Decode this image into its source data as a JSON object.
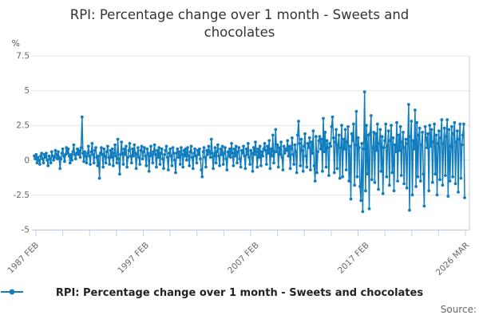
{
  "title": {
    "full": "RPI: Percentage change over 1 month - Sweets and chocolates",
    "lines": [
      "RPI: Percentage change over 1 month - Sweets and",
      "chocolates"
    ]
  },
  "y_axis_unit": "%",
  "legend": {
    "label": "RPI: Percentage change over 1 month - Sweets and chocolates"
  },
  "source_label": "Source:",
  "colors": {
    "line": "#117dbe",
    "grid": "#e4e4e4",
    "axis": "#c4cde0",
    "muted_text": "#666666",
    "title_text": "#333333"
  },
  "chart_data": {
    "type": "line",
    "title": "RPI: Percentage change over 1 month - Sweets and chocolates",
    "ylabel": "%",
    "ylim": [
      -5,
      7.5
    ],
    "yticks": [
      7.5,
      5,
      2.5,
      0,
      -2.5,
      -5
    ],
    "grid": "horizontal",
    "legend_position": "bottom",
    "frequency": "monthly",
    "x_start": "1987 FEB",
    "x_end": "2026 MAR",
    "x_ticks": [
      {
        "index": 0,
        "label": "1987 FEB"
      },
      {
        "index": 120,
        "label": "1997 FEB"
      },
      {
        "index": 240,
        "label": "2007 FEB"
      },
      {
        "index": 360,
        "label": "2017 FEB"
      },
      {
        "index": 469,
        "label": "2026 MAR"
      }
    ],
    "values": [
      0.3,
      0.1,
      0.4,
      -0.2,
      0.2,
      0.0,
      -0.3,
      0.3,
      0.5,
      0.1,
      -0.2,
      0.4,
      0.2,
      0.5,
      0.0,
      -0.4,
      0.3,
      0.1,
      -0.2,
      0.6,
      0.3,
      0.0,
      0.2,
      0.7,
      0.4,
      0.1,
      0.6,
      0.2,
      -0.6,
      0.1,
      0.5,
      0.8,
      0.3,
      -0.1,
      0.4,
      0.9,
      0.5,
      0.8,
      0.3,
      -0.2,
      0.4,
      0.0,
      0.6,
      1.1,
      0.4,
      0.1,
      0.5,
      0.8,
      0.4,
      0.7,
      0.2,
      0.9,
      3.1,
      0.5,
      -0.1,
      0.6,
      0.3,
      -0.2,
      0.5,
      1.0,
      0.3,
      -0.3,
      0.6,
      1.2,
      0.4,
      -0.2,
      0.7,
      0.9,
      0.2,
      -0.4,
      0.3,
      -1.3,
      0.5,
      0.9,
      0.4,
      -0.5,
      0.8,
      0.3,
      -0.2,
      0.6,
      1.0,
      0.2,
      -0.3,
      0.7,
      0.2,
      0.8,
      -0.4,
      0.5,
      1.1,
      0.3,
      -0.2,
      1.5,
      0.1,
      -1.0,
      0.4,
      1.3,
      0.5,
      -0.3,
      0.8,
      0.4,
      1.0,
      -0.5,
      0.2,
      0.7,
      1.2,
      0.3,
      -0.2,
      0.8,
      0.3,
      1.1,
      0.5,
      -0.6,
      0.4,
      0.9,
      0.2,
      -0.3,
      0.7,
      1.0,
      0.1,
      0.6,
      0.9,
      0.3,
      -0.4,
      0.8,
      0.5,
      -0.8,
      0.3,
      1.0,
      0.4,
      -0.2,
      0.6,
      1.1,
      0.4,
      -0.5,
      0.7,
      0.2,
      0.9,
      -0.3,
      0.5,
      0.8,
      0.1,
      -0.6,
      0.4,
      0.7,
      1.0,
      0.2,
      -0.7,
      0.5,
      0.8,
      0.3,
      -0.4,
      0.9,
      0.5,
      0.0,
      -0.9,
      0.5,
      0.8,
      0.2,
      0.6,
      -0.3,
      0.9,
      0.4,
      -0.5,
      0.7,
      0.3,
      0.8,
      0.0,
      0.9,
      0.3,
      -0.4,
      0.6,
      1.0,
      0.2,
      -0.6,
      0.5,
      0.8,
      0.3,
      -0.2,
      0.7,
      0.4,
      0.8,
      0.1,
      -0.7,
      -1.2,
      0.6,
      0.9,
      0.2,
      -0.5,
      0.7,
      0.4,
      1.0,
      0.6,
      0.2,
      1.5,
      0.5,
      -0.6,
      0.3,
      0.9,
      -0.2,
      0.6,
      1.1,
      0.3,
      -0.4,
      0.8,
      0.4,
      1.0,
      -0.3,
      0.5,
      0.9,
      0.1,
      -0.7,
      0.6,
      0.3,
      0.8,
      0.2,
      1.2,
      0.5,
      -0.4,
      0.8,
      0.3,
      1.0,
      -0.2,
      0.6,
      0.9,
      0.1,
      -0.5,
      0.7,
      0.5,
      1.0,
      0.3,
      -0.6,
      0.8,
      0.4,
      1.2,
      0.2,
      -0.3,
      0.7,
      0.5,
      -0.8,
      0.9,
      0.4,
      1.3,
      0.6,
      -0.5,
      0.8,
      0.2,
      1.0,
      -0.4,
      0.6,
      0.3,
      0.8,
      1.2,
      0.7,
      -0.3,
      1.0,
      0.5,
      1.4,
      -0.6,
      0.8,
      0.3,
      1.8,
      -0.2,
      0.6,
      2.2,
      0.6,
      1.1,
      -0.5,
      0.9,
      0.4,
      1.3,
      0.2,
      -0.7,
      1.0,
      0.5,
      0.8,
      0.7,
      1.4,
      0.3,
      1.0,
      -0.6,
      0.8,
      1.6,
      0.4,
      -0.3,
      1.1,
      0.6,
      -0.9,
      1.8,
      2.8,
      1.2,
      -0.4,
      1.5,
      0.7,
      -0.8,
      1.0,
      1.9,
      0.3,
      -0.5,
      1.2,
      0.9,
      1.6,
      -0.7,
      1.3,
      0.5,
      2.1,
      -0.4,
      -1.5,
      1.7,
      -0.9,
      0.6,
      1.4,
      1.7,
      0.8,
      1.5,
      -0.8,
      3.0,
      0.6,
      2.0,
      -0.5,
      1.4,
      0.9,
      -1.1,
      1.2,
      1.0,
      2.4,
      3.1,
      1.6,
      -0.9,
      1.3,
      2.2,
      -0.6,
      1.1,
      1.8,
      -1.3,
      0.9,
      2.5,
      -1.2,
      1.5,
      0.8,
      2.2,
      -0.7,
      1.3,
      2.4,
      -1.5,
      1.0,
      -2.8,
      1.9,
      1.4,
      2.6,
      -1.8,
      1.1,
      3.5,
      -1.2,
      1.6,
      0.9,
      -1.9,
      -2.9,
      1.2,
      -3.7,
      0.8,
      4.9,
      -2.2,
      2.5,
      -1.0,
      1.8,
      -3.5,
      1.9,
      3.2,
      -1.4,
      0.9,
      2.0,
      -1.6,
      1.9,
      0.7,
      2.6,
      -2.1,
      1.2,
      2.2,
      -0.8,
      1.7,
      -2.4,
      0.9,
      1.4,
      2.6,
      -1.2,
      1.0,
      2.1,
      -1.8,
      1.4,
      2.5,
      -0.9,
      1.6,
      -2.2,
      1.1,
      0.6,
      2.7,
      -1.5,
      1.8,
      0.7,
      2.4,
      -1.1,
      1.3,
      2.0,
      -1.7,
      0.9,
      1.5,
      -2.0,
      1.2,
      4.0,
      -3.6,
      1.7,
      2.8,
      -2.5,
      1.4,
      0.8,
      3.6,
      -1.9,
      2.7,
      -1.2,
      1.8,
      2.3,
      -1.5,
      1.1,
      2.0,
      -1.0,
      -3.3,
      2.4,
      1.6,
      0.9,
      1.9,
      -2.2,
      2.5,
      1.0,
      2.2,
      -1.6,
      1.3,
      2.6,
      -1.0,
      1.8,
      -2.5,
      1.2,
      2.1,
      -1.4,
      1.6,
      2.9,
      -1.8,
      1.2,
      2.3,
      -1.1,
      1.7,
      2.9,
      -2.6,
      2.2,
      -1.5,
      1.0,
      2.4,
      -1.2,
      1.9,
      2.7,
      -1.7,
      1.3,
      2.1,
      -2.3,
      1.5,
      2.6,
      -1.3,
      1.1,
      1.8,
      2.6,
      -2.7
    ]
  }
}
